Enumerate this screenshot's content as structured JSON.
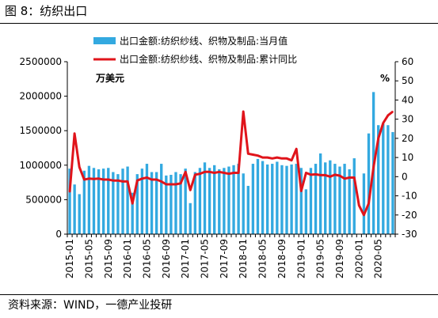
{
  "figure": {
    "title": "图 8：纺织出口",
    "source": "资料来源：WIND，一德产业投研"
  },
  "chart_data": {
    "type": "bar",
    "title": "",
    "unit_left": "万美元",
    "unit_right": "%",
    "legend_position": "top",
    "x_tick_labels": [
      "2015-01",
      "2015-05",
      "2015-09",
      "2016-01",
      "2016-05",
      "2016-09",
      "2017-01",
      "2017-05",
      "2017-09",
      "2018-01",
      "2018-05",
      "2018-09",
      "2019-01",
      "2019-05",
      "2019-09",
      "2020-01",
      "2020-05"
    ],
    "y_left": {
      "min": 0,
      "max": 2500000,
      "ticks": [
        "0",
        "500000",
        "1000000",
        "1500000",
        "2000000",
        "2500000"
      ]
    },
    "y_right": {
      "min": -30,
      "max": 60,
      "ticks": [
        "-30",
        "-20",
        "-10",
        "0",
        "10",
        "20",
        "30",
        "40",
        "50",
        "60"
      ]
    },
    "x": [
      "2015-01",
      "2015-02",
      "2015-03",
      "2015-04",
      "2015-05",
      "2015-06",
      "2015-07",
      "2015-08",
      "2015-09",
      "2015-10",
      "2015-11",
      "2015-12",
      "2016-01",
      "2016-02",
      "2016-03",
      "2016-04",
      "2016-05",
      "2016-06",
      "2016-07",
      "2016-08",
      "2016-09",
      "2016-10",
      "2016-11",
      "2016-12",
      "2017-01",
      "2017-02",
      "2017-03",
      "2017-04",
      "2017-05",
      "2017-06",
      "2017-07",
      "2017-08",
      "2017-09",
      "2017-10",
      "2017-11",
      "2017-12",
      "2018-01",
      "2018-02",
      "2018-03",
      "2018-04",
      "2018-05",
      "2018-06",
      "2018-07",
      "2018-08",
      "2018-09",
      "2018-10",
      "2018-11",
      "2018-12",
      "2019-01",
      "2019-02",
      "2019-03",
      "2019-04",
      "2019-05",
      "2019-06",
      "2019-07",
      "2019-08",
      "2019-09",
      "2019-10",
      "2019-11",
      "2019-12",
      "2020-01",
      "2020-02",
      "2020-03",
      "2020-04",
      "2020-05",
      "2020-06",
      "2020-07",
      "2020-08"
    ],
    "series": [
      {
        "name": "出口金额:纺织纱线、织物及制品:当月值",
        "type": "bar",
        "axis": "left",
        "color": "#33a9e0",
        "values": [
          950000,
          720000,
          580000,
          920000,
          990000,
          960000,
          940000,
          950000,
          960000,
          900000,
          870000,
          950000,
          980000,
          600000,
          870000,
          950000,
          1020000,
          900000,
          900000,
          1020000,
          850000,
          860000,
          900000,
          870000,
          950000,
          450000,
          900000,
          960000,
          1040000,
          960000,
          1000000,
          940000,
          960000,
          980000,
          1000000,
          1020000,
          880000,
          700000,
          1020000,
          1090000,
          1060000,
          1010000,
          1020000,
          1050000,
          1000000,
          990000,
          1010000,
          1020000,
          960000,
          650000,
          960000,
          1020000,
          1170000,
          1040000,
          1070000,
          1020000,
          980000,
          1020000,
          940000,
          1100000,
          null,
          880000,
          1460000,
          2060000,
          1580000,
          1600000,
          1580000,
          1480000
        ]
      },
      {
        "name": "出口金额:纺织纱线、织物及制品:累计同比",
        "type": "line",
        "axis": "right",
        "color": "#e0141b",
        "values": [
          -8,
          22.5,
          5,
          -1.5,
          -1,
          -1.2,
          -1,
          -1.5,
          -1.5,
          -2,
          -2,
          -2.5,
          -2.5,
          -14,
          -2,
          -1,
          -0.5,
          -1.5,
          -1.5,
          -2.5,
          -4,
          -4,
          -4,
          -3.5,
          2.5,
          -7,
          1,
          1.5,
          2.5,
          2.5,
          2,
          2.5,
          2,
          1.5,
          2,
          2,
          34,
          12,
          11.5,
          11,
          10,
          10,
          9.5,
          10,
          9.5,
          9.5,
          8.5,
          14.5,
          -7.5,
          2,
          1,
          1.2,
          0.8,
          0.8,
          0,
          1,
          0.5,
          -1,
          -0.5,
          -0.5,
          -15,
          -20,
          -14,
          5,
          20,
          28,
          32,
          34
        ]
      }
    ]
  }
}
